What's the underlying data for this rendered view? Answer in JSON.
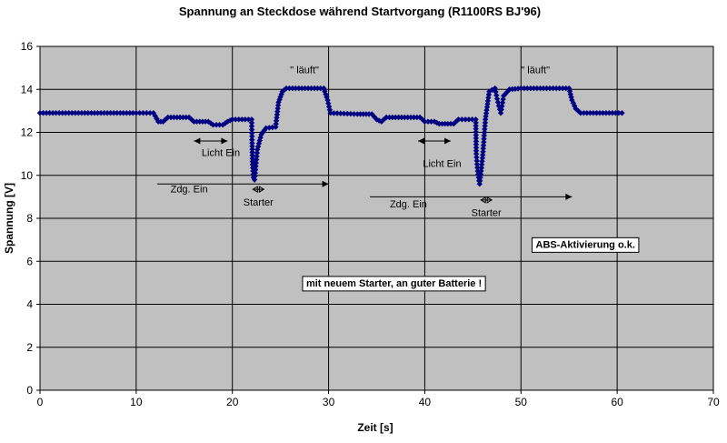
{
  "chart_data": {
    "type": "line",
    "title": "Spannung an Steckdose während Startvorgang (R1100RS BJ'96)",
    "xlabel": "Zeit [s]",
    "ylabel": "Spannung [V]",
    "xlim": [
      0,
      70
    ],
    "ylim": [
      0,
      16
    ],
    "xticks": [
      "0",
      "10",
      "20",
      "30",
      "40",
      "50",
      "60",
      "70"
    ],
    "yticks": [
      "0",
      "2",
      "4",
      "6",
      "8",
      "10",
      "12",
      "14",
      "16"
    ],
    "grid": true,
    "legend": "none",
    "colors": {
      "plot_bg": "#c0c0c0",
      "series": "#000080",
      "grid": "#000000"
    },
    "series": [
      {
        "marker": "diamond",
        "points": [
          [
            0,
            12.9
          ],
          [
            5,
            12.9
          ],
          [
            10,
            12.9
          ],
          [
            11.8,
            12.9
          ],
          [
            12.3,
            12.5
          ],
          [
            12.8,
            12.5
          ],
          [
            13.3,
            12.7
          ],
          [
            15.5,
            12.7
          ],
          [
            16,
            12.5
          ],
          [
            17.5,
            12.5
          ],
          [
            18,
            12.35
          ],
          [
            19,
            12.35
          ],
          [
            19.5,
            12.5
          ],
          [
            20,
            12.6
          ],
          [
            22.0,
            12.6
          ],
          [
            22.05,
            11.5
          ],
          [
            22.1,
            10.5
          ],
          [
            22.2,
            9.9
          ],
          [
            22.3,
            9.8
          ],
          [
            22.6,
            11.2
          ],
          [
            23,
            11.9
          ],
          [
            23.5,
            12.2
          ],
          [
            24.5,
            12.25
          ],
          [
            24.8,
            13.4
          ],
          [
            25.2,
            13.9
          ],
          [
            25.6,
            14.05
          ],
          [
            29.5,
            14.05
          ],
          [
            29.9,
            13.5
          ],
          [
            30.2,
            12.9
          ],
          [
            33,
            12.85
          ],
          [
            34.5,
            12.85
          ],
          [
            35,
            12.6
          ],
          [
            35.5,
            12.5
          ],
          [
            36,
            12.7
          ],
          [
            39.5,
            12.7
          ],
          [
            40,
            12.5
          ],
          [
            41,
            12.5
          ],
          [
            41.5,
            12.4
          ],
          [
            43,
            12.4
          ],
          [
            43.5,
            12.6
          ],
          [
            45.3,
            12.6
          ],
          [
            45.35,
            11.0
          ],
          [
            45.5,
            10.2
          ],
          [
            45.7,
            9.6
          ],
          [
            46.0,
            10.8
          ],
          [
            46.3,
            12.6
          ],
          [
            46.7,
            13.9
          ],
          [
            47.3,
            14.05
          ],
          [
            47.6,
            13.4
          ],
          [
            47.9,
            12.9
          ],
          [
            48.2,
            13.7
          ],
          [
            48.8,
            14.0
          ],
          [
            50,
            14.05
          ],
          [
            55,
            14.05
          ],
          [
            55.3,
            13.5
          ],
          [
            55.7,
            13.1
          ],
          [
            56.2,
            12.9
          ],
          [
            60.5,
            12.9
          ]
        ]
      }
    ],
    "annotations": [
      {
        "text": "\" läuft\"",
        "x": 27.5,
        "y": 14.75
      },
      {
        "text": "\" läuft\"",
        "x": 51.5,
        "y": 14.75
      },
      {
        "text": "Licht Ein",
        "x": 18.8,
        "y": 10.9
      },
      {
        "text": "Licht Ein",
        "x": 41.8,
        "y": 10.4
      },
      {
        "text": "Zdg. Ein",
        "x": 15.5,
        "y": 9.2
      },
      {
        "text": "Zdg. Ein",
        "x": 38.3,
        "y": 8.5
      },
      {
        "text": "Starter",
        "x": 22.7,
        "y": 8.6
      },
      {
        "text": "Starter",
        "x": 46.4,
        "y": 8.1
      }
    ],
    "double_arrows": [
      {
        "x1": 16,
        "x2": 19.5,
        "y": 11.6
      },
      {
        "x1": 39.3,
        "x2": 42.7,
        "y": 11.6
      }
    ],
    "right_arrows": [
      {
        "x1": 12.2,
        "x2": 30,
        "y": 9.6
      },
      {
        "x1": 34.3,
        "x2": 55.3,
        "y": 9.0
      }
    ],
    "diamond_arrows": [
      {
        "x": 22.7,
        "y": 9.35
      },
      {
        "x": 46.4,
        "y": 8.85
      }
    ],
    "boxes": [
      {
        "text": "mit neuem Starter, an guter Batterie !",
        "x": 36.8,
        "y": 5.0
      },
      {
        "text": "ABS-Aktivierung o.k.",
        "x": 56.7,
        "y": 6.8
      }
    ]
  }
}
